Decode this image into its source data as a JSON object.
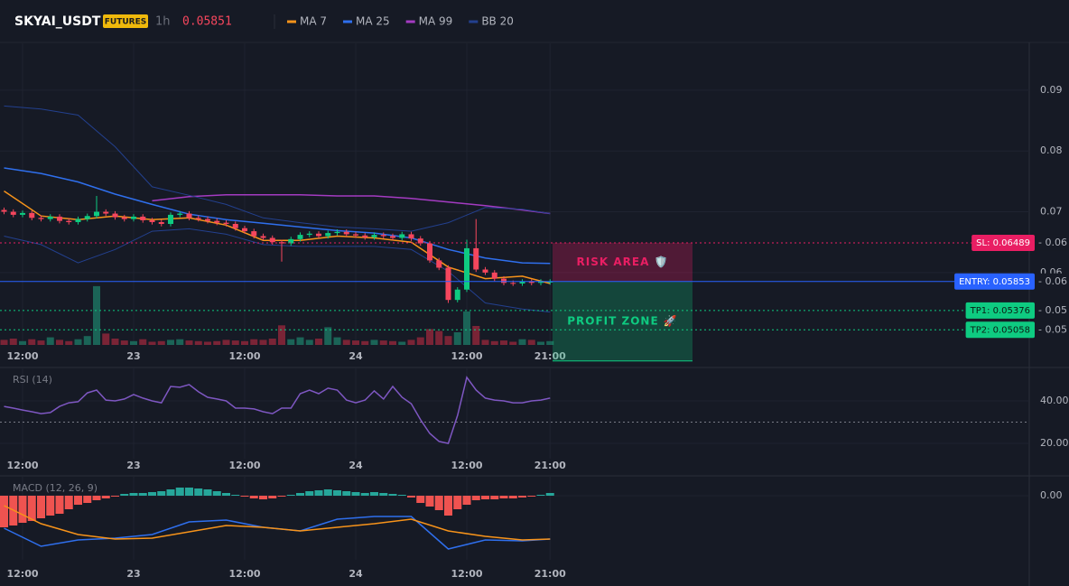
{
  "header": {
    "symbol": "SKYAI_USDT",
    "badge": "FUTURES",
    "interval": "1h",
    "price": "0.05851"
  },
  "chart_data": [
    {
      "type": "candlestick",
      "categories": [
        null,
        null,
        "12:00",
        null,
        null,
        null,
        null,
        null,
        null,
        null,
        null,
        null,
        null,
        null,
        "23",
        null,
        null,
        null,
        null,
        null,
        null,
        null,
        null,
        null,
        null,
        null,
        "12:00",
        null,
        null,
        null,
        null,
        null,
        null,
        null,
        null,
        null,
        null,
        null,
        "24",
        null,
        null,
        null,
        null,
        null,
        null,
        null,
        null,
        null,
        null,
        null,
        "12:00",
        null,
        null,
        null,
        null,
        null,
        null,
        null,
        null,
        "21:00"
      ],
      "open": [
        0.0703,
        0.07,
        0.0695,
        0.0698,
        0.069,
        0.0688,
        0.0692,
        0.0685,
        0.0683,
        0.0688,
        0.0693,
        0.07,
        0.0697,
        0.0691,
        0.0688,
        0.0692,
        0.0686,
        0.0683,
        0.068,
        0.0695,
        0.0697,
        0.069,
        0.0688,
        0.0685,
        0.0682,
        0.068,
        0.0673,
        0.0668,
        0.066,
        0.0657,
        0.065,
        0.0648,
        0.0655,
        0.0662,
        0.0664,
        0.066,
        0.0665,
        0.0667,
        0.0663,
        0.0661,
        0.0658,
        0.0662,
        0.066,
        0.0657,
        0.0663,
        0.0656,
        0.0648,
        0.062,
        0.0608,
        0.0555,
        0.0572,
        0.064,
        0.0605,
        0.06,
        0.059,
        0.0583,
        0.0582,
        0.0585,
        0.0583,
        0.0585
      ],
      "high": [
        0.0707,
        0.0704,
        0.0702,
        0.0702,
        0.0694,
        0.0696,
        0.0696,
        0.0689,
        0.0692,
        0.0697,
        0.0726,
        0.0704,
        0.0701,
        0.0695,
        0.0696,
        0.0696,
        0.069,
        0.0687,
        0.0699,
        0.0701,
        0.0701,
        0.0694,
        0.0692,
        0.0689,
        0.0686,
        0.0684,
        0.0677,
        0.0672,
        0.0664,
        0.0661,
        0.0654,
        0.0659,
        0.0666,
        0.0668,
        0.0668,
        0.0669,
        0.0671,
        0.0671,
        0.0667,
        0.0665,
        0.0666,
        0.0666,
        0.0664,
        0.0667,
        0.0667,
        0.066,
        0.0652,
        0.0624,
        0.0612,
        0.0576,
        0.0654,
        0.0688,
        0.0609,
        0.0604,
        0.0594,
        0.0587,
        0.0589,
        0.0589,
        0.0589,
        0.0589
      ],
      "low": [
        0.0696,
        0.0691,
        0.0691,
        0.0686,
        0.0684,
        0.0684,
        0.0681,
        0.0679,
        0.0679,
        0.0684,
        0.0689,
        0.0693,
        0.0687,
        0.0684,
        0.0684,
        0.0682,
        0.0679,
        0.0676,
        0.0676,
        0.0691,
        0.0686,
        0.0684,
        0.0681,
        0.0678,
        0.0676,
        0.0669,
        0.0664,
        0.0656,
        0.0653,
        0.0646,
        0.0618,
        0.0644,
        0.0651,
        0.0658,
        0.0656,
        0.0656,
        0.0661,
        0.0659,
        0.0657,
        0.0654,
        0.0654,
        0.0656,
        0.0653,
        0.0653,
        0.0652,
        0.0644,
        0.0616,
        0.0604,
        0.055,
        0.0551,
        0.0568,
        0.0601,
        0.0596,
        0.0586,
        0.0579,
        0.0578,
        0.0578,
        0.0579,
        0.0579,
        0.058
      ],
      "close": [
        0.07,
        0.0695,
        0.0698,
        0.069,
        0.0688,
        0.0692,
        0.0685,
        0.0683,
        0.0688,
        0.0693,
        0.07,
        0.0697,
        0.0691,
        0.0688,
        0.0692,
        0.0686,
        0.0683,
        0.068,
        0.0695,
        0.0697,
        0.069,
        0.0688,
        0.0685,
        0.0682,
        0.068,
        0.0673,
        0.0668,
        0.066,
        0.0657,
        0.065,
        0.0648,
        0.0655,
        0.0662,
        0.0664,
        0.066,
        0.0665,
        0.0667,
        0.0663,
        0.0661,
        0.0658,
        0.0662,
        0.066,
        0.0657,
        0.0663,
        0.0656,
        0.0648,
        0.062,
        0.0608,
        0.0555,
        0.0572,
        0.064,
        0.0605,
        0.06,
        0.059,
        0.0583,
        0.0582,
        0.0585,
        0.0583,
        0.0585,
        0.05851
      ],
      "volume": [
        8,
        10,
        6,
        9,
        7,
        12,
        8,
        6,
        9,
        14,
        93,
        18,
        10,
        7,
        6,
        9,
        5,
        6,
        8,
        9,
        7,
        6,
        5,
        6,
        8,
        7,
        6,
        9,
        8,
        10,
        31,
        9,
        12,
        8,
        10,
        28,
        12,
        8,
        7,
        6,
        8,
        7,
        6,
        5,
        8,
        12,
        25,
        22,
        14,
        20,
        53,
        30,
        8,
        6,
        7,
        5,
        9,
        8,
        5,
        6
      ],
      "vlim": [
        0,
        100
      ],
      "up_color": "#0ecb81",
      "down_color": "#f6465d",
      "volume_up_color": "#1b6457",
      "volume_down_color": "#7a2436",
      "series": [
        {
          "name": "MA 7",
          "color": "#f7931a",
          "x": [
            0,
            4,
            8,
            12,
            16,
            20,
            24,
            28,
            32,
            36,
            40,
            44,
            48,
            52,
            56,
            59
          ],
          "values": [
            0.0734,
            0.0693,
            0.0687,
            0.0693,
            0.0687,
            0.069,
            0.0678,
            0.0653,
            0.0653,
            0.066,
            0.0657,
            0.065,
            0.0609,
            0.059,
            0.0594,
            0.0582
          ]
        },
        {
          "name": "MA 25",
          "color": "#2f6fed",
          "x": [
            0,
            4,
            8,
            12,
            16,
            20,
            24,
            28,
            32,
            36,
            40,
            44,
            48,
            52,
            56,
            59
          ],
          "values": [
            0.0772,
            0.0763,
            0.0749,
            0.0729,
            0.0712,
            0.0696,
            0.0687,
            0.0681,
            0.0675,
            0.0669,
            0.0665,
            0.0657,
            0.0638,
            0.0624,
            0.0616,
            0.0615
          ]
        },
        {
          "name": "MA 99",
          "color": "#a43bc2",
          "x": [
            16,
            20,
            24,
            28,
            32,
            36,
            40,
            44,
            48,
            52,
            56,
            59
          ],
          "values": [
            0.0718,
            0.0725,
            0.0728,
            0.0728,
            0.0728,
            0.0726,
            0.0726,
            0.0722,
            0.0716,
            0.071,
            0.0703,
            0.0697
          ]
        },
        {
          "name": "BB 20",
          "color": "#23408e",
          "x": [
            0,
            4,
            8,
            12,
            16,
            20,
            24,
            28,
            32,
            36,
            40,
            44,
            48,
            52,
            56,
            59
          ],
          "values": [
            0.0874,
            0.0869,
            0.0859,
            0.0807,
            0.0741,
            0.0727,
            0.0712,
            0.069,
            0.0682,
            0.0675,
            0.0672,
            0.0668,
            0.0682,
            0.0707,
            0.0704,
            0.0697
          ]
        },
        {
          "color": "#23408e",
          "x": [
            0,
            4,
            8,
            12,
            16,
            20,
            24,
            28,
            32,
            36,
            40,
            44,
            48,
            52,
            56,
            59
          ],
          "values": [
            0.066,
            0.0646,
            0.0616,
            0.0638,
            0.0668,
            0.0672,
            0.0663,
            0.0646,
            0.0643,
            0.0643,
            0.0643,
            0.0638,
            0.0602,
            0.055,
            0.054,
            0.0535
          ]
        }
      ],
      "ylim": [
        0.0481,
        0.0977
      ],
      "yticks": [
        0.09,
        0.08,
        0.07,
        0.06
      ],
      "levels": [
        {
          "label": "SL: 0.06489",
          "value": 0.06489,
          "tag": "- 0.06",
          "color": "#e91e63",
          "dash": "2 3"
        },
        {
          "label": "ENTRY: 0.05853",
          "value": 0.05853,
          "tag": "- 0.06",
          "color": "#2962ff",
          "dash": "none"
        },
        {
          "label": "TP1: 0.05376",
          "value": 0.05376,
          "tag": "- 0.05",
          "color": "#0ecb81",
          "dash": "2 3"
        },
        {
          "label": "TP2: 0.05058",
          "value": 0.05058,
          "tag": "- 0.05",
          "color": "#0ecb81",
          "dash": "2 3"
        }
      ],
      "zones": [
        {
          "label": "RISK AREA 🛡️",
          "color": "#e91e63"
        },
        {
          "label": "PROFIT ZONE 🚀",
          "color": "#0ecb81"
        }
      ]
    },
    {
      "type": "line",
      "title": "RSI (14)",
      "categories": [
        null,
        null,
        "12:00",
        null,
        null,
        null,
        null,
        null,
        null,
        null,
        null,
        null,
        null,
        null,
        "23",
        null,
        null,
        null,
        null,
        null,
        null,
        null,
        null,
        null,
        null,
        null,
        "12:00",
        null,
        null,
        null,
        null,
        null,
        null,
        null,
        null,
        null,
        null,
        null,
        "24",
        null,
        null,
        null,
        null,
        null,
        null,
        null,
        null,
        null,
        null,
        null,
        "12:00",
        null,
        null,
        null,
        null,
        null,
        null,
        null,
        null,
        "21:00"
      ],
      "color": "#7e57c2",
      "values": [
        37.4,
        36.6,
        35.7,
        34.9,
        34.0,
        34.5,
        37.4,
        39.1,
        39.6,
        43.8,
        45.1,
        40.4,
        40.0,
        40.9,
        43.0,
        41.3,
        40.0,
        39.1,
        46.8,
        46.4,
        47.7,
        44.3,
        41.7,
        40.9,
        40.0,
        36.6,
        36.6,
        36.2,
        34.9,
        34.0,
        36.6,
        36.6,
        43.4,
        45.1,
        43.4,
        46.0,
        45.1,
        40.4,
        39.1,
        40.4,
        44.7,
        40.9,
        46.8,
        41.7,
        38.7,
        31.1,
        24.7,
        20.9,
        20.0,
        33.2,
        51.1,
        45.1,
        41.3,
        40.4,
        40.0,
        39.1,
        39.1,
        40.0,
        40.4,
        41.3
      ],
      "guide": 30,
      "ylim": [
        12.8,
        55.3
      ],
      "yticks": [
        {
          "value": 40,
          "label": "40.00"
        },
        {
          "value": 20,
          "label": "20.00"
        }
      ]
    },
    {
      "type": "bar",
      "title": "MACD (12, 26, 9)",
      "categories": [
        null,
        null,
        "12:00",
        null,
        null,
        null,
        null,
        null,
        null,
        null,
        null,
        null,
        null,
        null,
        "23",
        null,
        null,
        null,
        null,
        null,
        null,
        null,
        null,
        null,
        null,
        null,
        "12:00",
        null,
        null,
        null,
        null,
        null,
        null,
        null,
        null,
        null,
        null,
        null,
        "24",
        null,
        null,
        null,
        null,
        null,
        null,
        null,
        null,
        null,
        null,
        null,
        "12:00",
        null,
        null,
        null,
        null,
        null,
        null,
        null,
        null,
        "21:00"
      ],
      "values": [
        -0.0035,
        -0.0033,
        -0.003,
        -0.0028,
        -0.0025,
        -0.0022,
        -0.002,
        -0.0015,
        -0.001,
        -0.0008,
        -0.0005,
        -0.0003,
        -0.0001,
        0.0002,
        0.0003,
        0.0003,
        0.0004,
        0.0005,
        0.0007,
        0.0009,
        0.0009,
        0.0008,
        0.0007,
        0.0005,
        0.0003,
        0.0001,
        -0.0001,
        -0.0003,
        -0.0004,
        -0.0003,
        -0.0001,
        0.0001,
        0.0003,
        0.0005,
        0.0006,
        0.0007,
        0.0006,
        0.0005,
        0.0004,
        0.0003,
        0.0004,
        0.0003,
        0.0002,
        0.0001,
        -0.0002,
        -0.0008,
        -0.0012,
        -0.0016,
        -0.0022,
        -0.0015,
        -0.001,
        -0.0005,
        -0.0004,
        -0.0004,
        -0.0003,
        -0.0003,
        -0.0002,
        -0.0001,
        0.0001,
        0.0003
      ],
      "up_color": "#26a69a",
      "down_color": "#ef5350",
      "series": [
        {
          "color": "#2f6fed",
          "x": [
            0,
            4,
            8,
            12,
            16,
            20,
            24,
            28,
            32,
            36,
            40,
            44,
            48,
            52,
            56,
            59
          ],
          "values": [
            -0.0036,
            -0.0056,
            -0.0049,
            -0.0047,
            -0.0043,
            -0.0029,
            -0.0027,
            -0.0035,
            -0.0039,
            -0.0026,
            -0.0023,
            -0.0023,
            -0.0059,
            -0.0049,
            -0.005,
            -0.0048
          ]
        },
        {
          "color": "#f7931a",
          "x": [
            0,
            4,
            8,
            12,
            16,
            20,
            24,
            28,
            32,
            36,
            40,
            44,
            48,
            52,
            56,
            59
          ],
          "values": [
            -0.0011,
            -0.0031,
            -0.0043,
            -0.0048,
            -0.0047,
            -0.004,
            -0.0033,
            -0.0035,
            -0.0039,
            -0.0035,
            -0.0031,
            -0.0026,
            -0.0039,
            -0.0045,
            -0.0049,
            -0.0048
          ]
        }
      ],
      "ylim": [
        -0.0071,
        0.0021
      ],
      "yticks": [
        {
          "value": 0,
          "label": "0.00"
        }
      ]
    }
  ]
}
